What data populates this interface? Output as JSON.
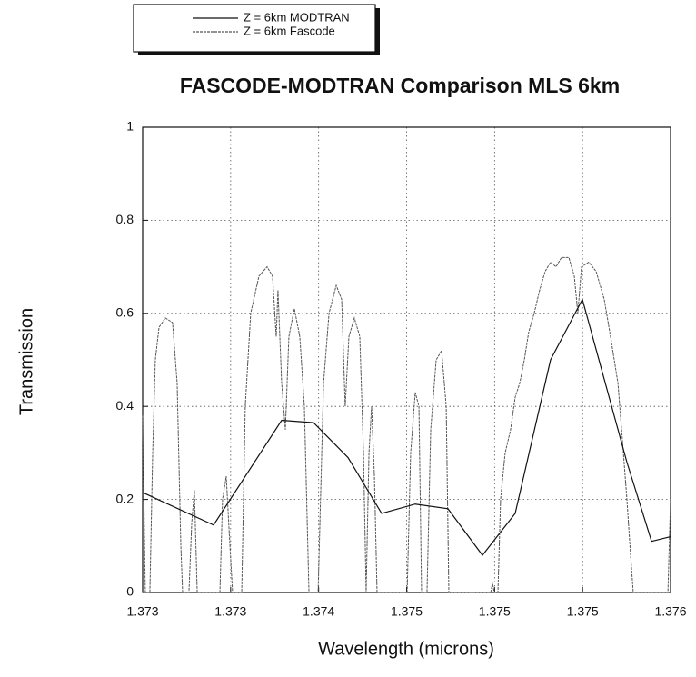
{
  "chart_data": {
    "type": "line",
    "title": "FASCODE-MODTRAN Comparison MLS 6km",
    "xlabel": "Wavelength (microns)",
    "ylabel": "Transmission",
    "xlim": [
      1.373,
      1.376
    ],
    "ylim": [
      0,
      1
    ],
    "xticks": [
      {
        "value": 1.373,
        "label": "1.373"
      },
      {
        "value": 1.3735,
        "label": "1.373"
      },
      {
        "value": 1.374,
        "label": "1.374"
      },
      {
        "value": 1.3745,
        "label": "1.375"
      },
      {
        "value": 1.375,
        "label": "1.375"
      },
      {
        "value": 1.3755,
        "label": "1.375"
      },
      {
        "value": 1.376,
        "label": "1.376"
      }
    ],
    "yticks": [
      0,
      0.2,
      0.4,
      0.6,
      0.8,
      1
    ],
    "grid": true,
    "series": [
      {
        "name": "Z = 6km MODTRAN",
        "color": "#111111",
        "x": [
          1.373,
          1.373403,
          1.37379,
          1.373971,
          1.374167,
          1.374358,
          1.374549,
          1.374735,
          1.374931,
          1.375117,
          1.375318,
          1.375499,
          1.375752,
          1.375892,
          1.376
        ],
        "values": [
          0.215,
          0.145,
          0.37,
          0.365,
          0.29,
          0.17,
          0.19,
          0.18,
          0.08,
          0.17,
          0.5,
          0.63,
          0.28,
          0.11,
          0.12
        ]
      },
      {
        "name": "Z = 6km Fascode",
        "color": "#555555",
        "x": [
          1.373,
          1.373015,
          1.373041,
          1.373057,
          1.373072,
          1.373093,
          1.373129,
          1.37317,
          1.373196,
          1.373217,
          1.373227,
          1.373263,
          1.373279,
          1.373294,
          1.37331,
          1.373439,
          1.373454,
          1.373475,
          1.373496,
          1.373511,
          1.373563,
          1.373583,
          1.373614,
          1.373661,
          1.373707,
          1.373738,
          1.373759,
          1.373769,
          1.37379,
          1.373811,
          1.373831,
          1.373862,
          1.373893,
          1.373919,
          1.373945,
          1.373997,
          1.374028,
          1.374059,
          1.3741,
          1.374131,
          1.374151,
          1.374172,
          1.374203,
          1.374234,
          1.374255,
          1.37427,
          1.374286,
          1.374301,
          1.374317,
          1.374332,
          1.374503,
          1.374523,
          1.374549,
          1.37457,
          1.374585,
          1.374616,
          1.374637,
          1.374668,
          1.374699,
          1.374725,
          1.37474,
          1.374978,
          1.374988,
          1.374998,
          1.375019,
          1.375034,
          1.37506,
          1.375091,
          1.375117,
          1.375143,
          1.375169,
          1.375194,
          1.375225,
          1.375256,
          1.375287,
          1.375318,
          1.375349,
          1.37538,
          1.375422,
          1.375453,
          1.375473,
          1.375494,
          1.375535,
          1.375577,
          1.375623,
          1.375659,
          1.375701,
          1.375732,
          1.375752,
          1.375773,
          1.375788,
          1.375985,
          1.376
        ],
        "values": [
          0.38,
          0.0,
          0.0,
          0.3,
          0.5,
          0.57,
          0.59,
          0.58,
          0.45,
          0.1,
          0.0,
          0.0,
          0.15,
          0.22,
          0.0,
          0.0,
          0.2,
          0.25,
          0.1,
          0.0,
          0.0,
          0.4,
          0.6,
          0.68,
          0.7,
          0.68,
          0.55,
          0.65,
          0.45,
          0.35,
          0.55,
          0.61,
          0.55,
          0.4,
          0.0,
          0.0,
          0.45,
          0.6,
          0.66,
          0.63,
          0.4,
          0.55,
          0.59,
          0.55,
          0.3,
          0.0,
          0.3,
          0.4,
          0.25,
          0.0,
          0.0,
          0.3,
          0.43,
          0.4,
          0.0,
          0.0,
          0.35,
          0.5,
          0.52,
          0.4,
          0.0,
          0.0,
          0.02,
          0.0,
          0.0,
          0.2,
          0.3,
          0.35,
          0.42,
          0.45,
          0.5,
          0.56,
          0.6,
          0.65,
          0.69,
          0.71,
          0.7,
          0.72,
          0.72,
          0.68,
          0.6,
          0.7,
          0.71,
          0.69,
          0.63,
          0.55,
          0.45,
          0.3,
          0.2,
          0.08,
          0.0,
          0.0,
          0.2
        ]
      }
    ]
  }
}
